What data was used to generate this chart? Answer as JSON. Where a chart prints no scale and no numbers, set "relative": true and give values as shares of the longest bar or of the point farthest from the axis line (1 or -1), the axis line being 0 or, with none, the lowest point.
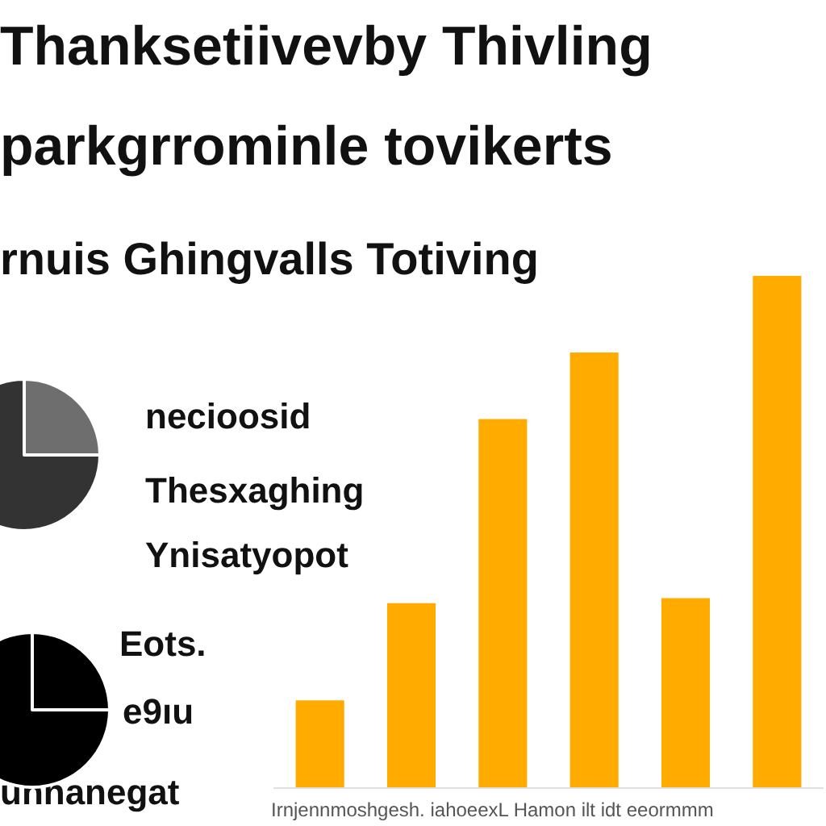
{
  "chart_data": [
    {
      "type": "pie",
      "title": "Thanksetiivevby Thivling\nparkgrrominle tovikerts",
      "subtitle": "rnuis Ghingvalls Totiving",
      "categories": [
        null,
        null
      ],
      "values": [
        25,
        75
      ],
      "colors": [
        "#6e6e6e",
        "#333333"
      ],
      "annotations": [
        "necioosid",
        "Thesxaghing",
        "Ynisatyopot"
      ]
    },
    {
      "type": "pie",
      "categories": [
        null,
        null
      ],
      "values": [
        25,
        75
      ],
      "colors": [
        "#000000",
        "#000000"
      ],
      "annotations": [
        "Eots.",
        "e9ıu",
        "unnanegat"
      ]
    },
    {
      "type": "bar",
      "relative": true,
      "categories": [
        null,
        null,
        null,
        null,
        null,
        null
      ],
      "values": [
        0.17,
        0.36,
        0.72,
        0.85,
        0.37,
        1
      ],
      "color": "#ffab00",
      "annotations": [
        "Irnjennmoshgesh. iahoeexL Hamon ilt idt eeormmm"
      ]
    }
  ]
}
